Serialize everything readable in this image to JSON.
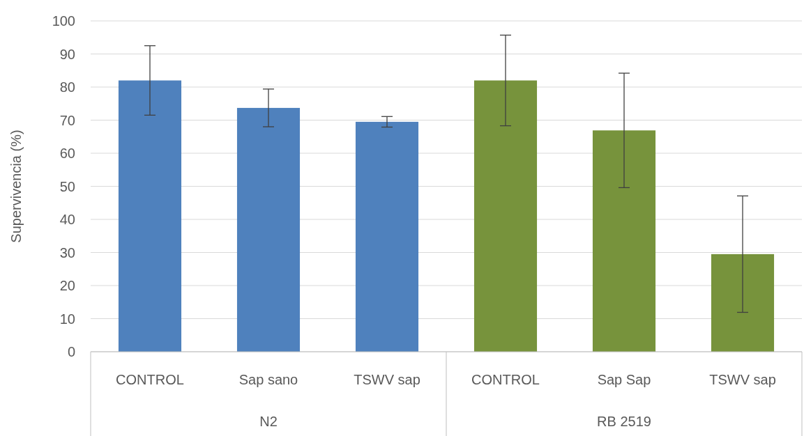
{
  "chart_data": {
    "type": "bar",
    "ylabel": "Supervivencia (%)",
    "categories": [
      "CONTROL",
      "Sap sano",
      "TSWV sap",
      "CONTROL",
      "Sap Sap",
      "TSWV sap"
    ],
    "values": [
      82,
      73.7,
      69.5,
      82,
      66.9,
      29.5
    ],
    "colors": [
      "#4f81bd",
      "#4f81bd",
      "#4f81bd",
      "#77933c",
      "#77933c",
      "#77933c"
    ],
    "errors": [
      10.5,
      5.7,
      1.6,
      13.7,
      17.3,
      17.6
    ],
    "annotations": [
      "N2",
      "RB 2519"
    ],
    "ylim": [
      0,
      100
    ],
    "yticks": [
      0,
      10,
      20,
      30,
      40,
      50,
      60,
      70,
      80,
      90,
      100
    ],
    "grid": "y"
  }
}
